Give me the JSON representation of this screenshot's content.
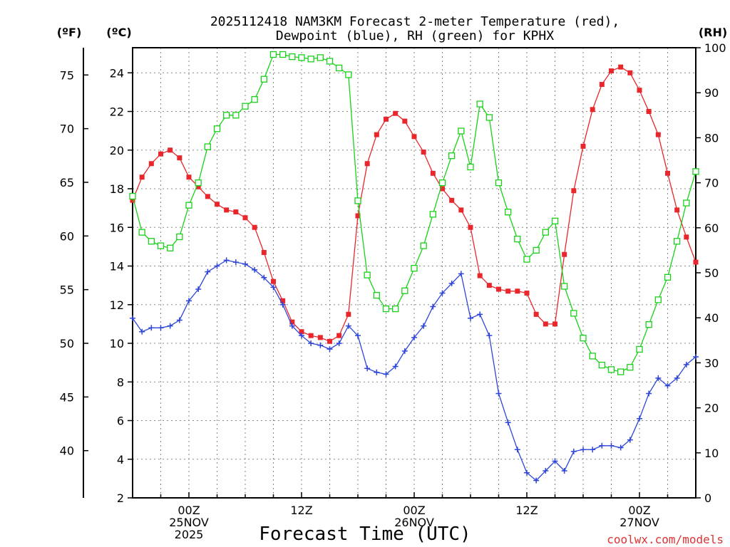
{
  "chart_data": {
    "type": "line",
    "title_line1": "2025112418 NAM3KM Forecast 2-meter Temperature (red),",
    "title_line2": "Dewpoint (blue), RH (green) for KPHX",
    "xlabel": "Forecast Time (UTC)",
    "credit": "coolwx.com/models",
    "left_unit_f": "(ºF)",
    "left_unit_c": "(ºC)",
    "right_unit": "(RH)",
    "x_range_hours": [
      18,
      78
    ],
    "celsius_range": [
      2,
      25.3
    ],
    "rh_range": [
      0,
      100
    ],
    "celsius_ticks": [
      "2",
      "4",
      "6",
      "8",
      "10",
      "12",
      "14",
      "16",
      "18",
      "20",
      "22",
      "24"
    ],
    "fahrenheit_ticks": [
      "40",
      "45",
      "50",
      "55",
      "60",
      "65",
      "70",
      "75"
    ],
    "rh_ticks": [
      "0",
      "10",
      "20",
      "30",
      "40",
      "50",
      "60",
      "70",
      "80",
      "90",
      "100"
    ],
    "x_ticks": [
      {
        "hour": 24,
        "lines": [
          "00Z",
          "25NOV",
          "2025"
        ]
      },
      {
        "hour": 36,
        "lines": [
          "12Z"
        ]
      },
      {
        "hour": 48,
        "lines": [
          "00Z",
          "26NOV"
        ]
      },
      {
        "hour": 60,
        "lines": [
          "12Z"
        ]
      },
      {
        "hour": 72,
        "lines": [
          "00Z",
          "27NOV"
        ]
      }
    ],
    "series": [
      {
        "name": "Temperature",
        "unit": "C",
        "color": "#e8262b",
        "marker": "filled-square",
        "axis": "celsius",
        "start_hour": 18,
        "step_hours": 1,
        "values": [
          17.4,
          18.6,
          19.3,
          19.8,
          20.0,
          19.6,
          18.6,
          18.1,
          17.6,
          17.2,
          16.9,
          16.8,
          16.5,
          16.0,
          14.7,
          13.2,
          12.2,
          11.1,
          10.6,
          10.4,
          10.3,
          10.1,
          10.4,
          11.5,
          16.6,
          19.3,
          20.8,
          21.6,
          21.9,
          21.5,
          20.7,
          19.9,
          18.8,
          18.0,
          17.4,
          16.9,
          16.0,
          13.5,
          13.0,
          12.8,
          12.7,
          12.7,
          12.6,
          11.5,
          11.0,
          11.0,
          14.6,
          17.9,
          20.2,
          22.1,
          23.4,
          24.1,
          24.3,
          24.0,
          23.1,
          22.0,
          20.8,
          18.8,
          16.9,
          15.5,
          14.2
        ]
      },
      {
        "name": "Dewpoint",
        "unit": "C",
        "color": "#2d45d8",
        "marker": "plus",
        "axis": "celsius",
        "start_hour": 18,
        "step_hours": 1,
        "values": [
          11.3,
          10.6,
          10.8,
          10.8,
          10.9,
          11.2,
          12.2,
          12.8,
          13.7,
          14.0,
          14.3,
          14.2,
          14.1,
          13.8,
          13.4,
          12.9,
          12.0,
          10.9,
          10.4,
          10.0,
          9.9,
          9.7,
          10.0,
          10.9,
          10.4,
          8.7,
          8.5,
          8.4,
          8.8,
          9.6,
          10.3,
          10.9,
          11.9,
          12.6,
          13.1,
          13.6,
          11.3,
          11.5,
          10.4,
          7.4,
          5.9,
          4.5,
          3.3,
          2.9,
          3.4,
          3.9,
          3.4,
          4.4,
          4.5,
          4.5,
          4.7,
          4.7,
          4.6,
          5.0,
          6.1,
          7.4,
          8.2,
          7.8,
          8.2,
          8.9,
          9.3
        ]
      },
      {
        "name": "RH",
        "unit": "%",
        "color": "#19d119",
        "marker": "open-square",
        "axis": "rh",
        "start_hour": 18,
        "step_hours": 1,
        "values": [
          67,
          59,
          57,
          56,
          55.5,
          58,
          65,
          70,
          78,
          82,
          85,
          85,
          87,
          88.5,
          93,
          98.5,
          98.5,
          98,
          97.8,
          97.5,
          97.8,
          97,
          95.5,
          94,
          66,
          49.5,
          45,
          42,
          42,
          46,
          51,
          56,
          63,
          70,
          76,
          81.5,
          73.5,
          87.5,
          84.5,
          70,
          63.5,
          57.5,
          53,
          55,
          59,
          61.5,
          47,
          41,
          35.5,
          31.5,
          29.5,
          28.5,
          28,
          29,
          33,
          38.5,
          44,
          49,
          57,
          65.5,
          72.5
        ]
      }
    ]
  }
}
